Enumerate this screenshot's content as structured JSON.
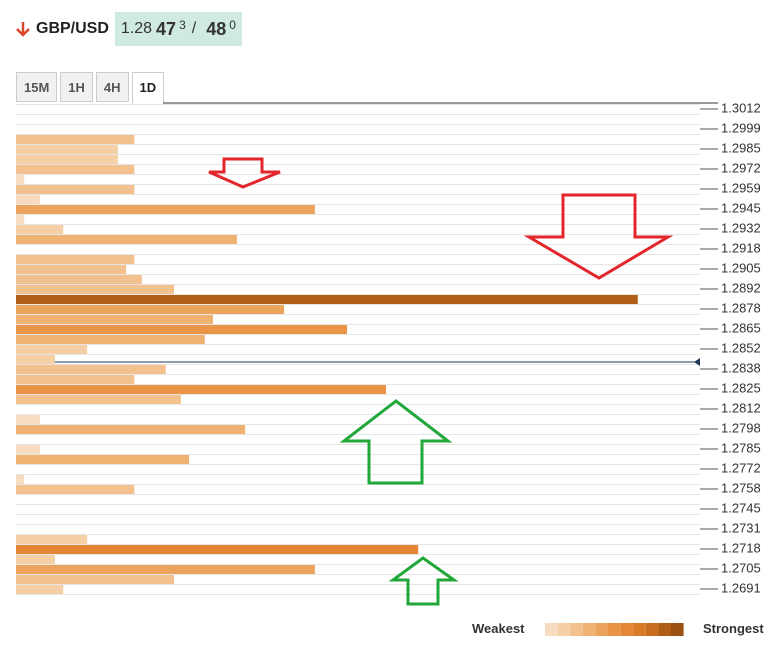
{
  "header": {
    "pair": "GBP/USD",
    "price_big": "1.28",
    "price_pips": "47",
    "price_frac": "3",
    "separator": "/",
    "ask_pips": "48",
    "ask_frac": "0"
  },
  "tabs": [
    "15M",
    "1H",
    "4H",
    "1D"
  ],
  "chart_data": {
    "type": "confluence",
    "categories": [
      "1.3012",
      null,
      "1.2999",
      null,
      "1.2985",
      null,
      "1.2972",
      null,
      "1.2959",
      null,
      "1.2945",
      null,
      "1.2932",
      null,
      "1.2918",
      null,
      "1.2905",
      null,
      "1.2892",
      null,
      "1.2878",
      null,
      "1.2865",
      null,
      "1.2852",
      null,
      "1.2838",
      null,
      "1.2825",
      null,
      "1.2812",
      null,
      "1.2798",
      null,
      "1.2785",
      null,
      "1.2772",
      null,
      "1.2758",
      null,
      "1.2745",
      null,
      "1.2731",
      null,
      "1.2718",
      null,
      "1.2705",
      null,
      "1.2691"
    ],
    "values": [
      null,
      null,
      null,
      17.3,
      14.9,
      14.9,
      17.3,
      1.2,
      17.3,
      3.5,
      43.7,
      1.2,
      6.9,
      32.3,
      null,
      17.3,
      16.1,
      18.4,
      23.1,
      90.9,
      39.2,
      28.8,
      48.4,
      27.6,
      10.4,
      5.7,
      21.9,
      17.3,
      54.1,
      24.1,
      null,
      3.5,
      33.5,
      null,
      3.5,
      25.3,
      null,
      1.2,
      17.3,
      null,
      null,
      null,
      null,
      10.4,
      58.8,
      5.7,
      43.7,
      23.1,
      6.9
    ],
    "xlim": [
      0,
      100
    ],
    "palette": [
      "#f7dcc0",
      "#f5cfa6",
      "#f2c18d",
      "#efb273",
      "#eca35c",
      "#e99447",
      "#e38636",
      "#d87a27",
      "#c86c1d",
      "#b05e16",
      "#9a5112"
    ],
    "legend": {
      "low": "Weakest",
      "high": "Strongest"
    }
  }
}
